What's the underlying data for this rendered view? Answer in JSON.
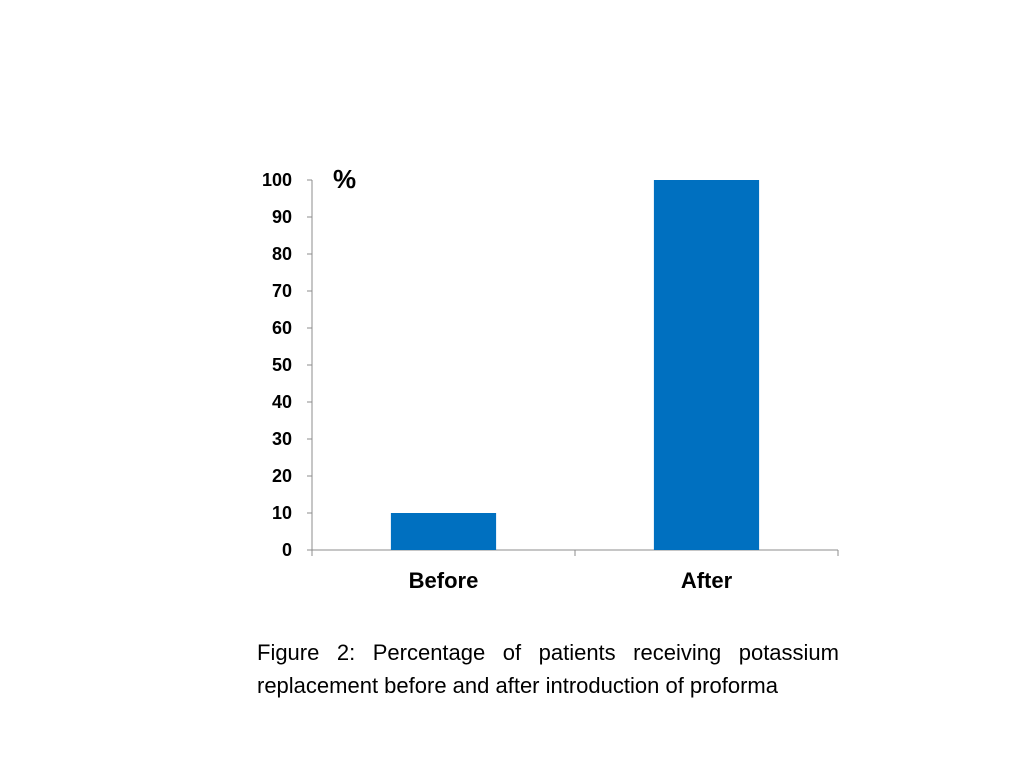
{
  "chart_data": {
    "type": "bar",
    "categories": [
      "Before",
      "After"
    ],
    "values": [
      10,
      100
    ],
    "ylabel": "%",
    "ylim": [
      0,
      100
    ],
    "yticks": [
      0,
      10,
      20,
      30,
      40,
      50,
      60,
      70,
      80,
      90,
      100
    ],
    "grid": false,
    "legend": "none",
    "bar_color": "#0070C0"
  },
  "caption": "Figure 2: Percentage of patients receiving potassium replacement before and after introduction of proforma"
}
